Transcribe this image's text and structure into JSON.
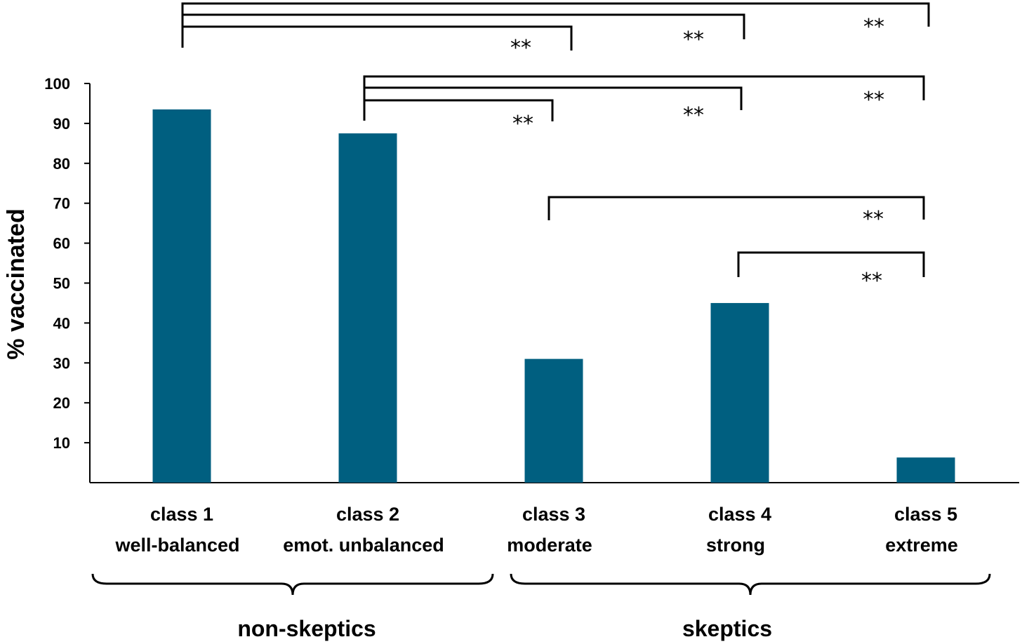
{
  "chart_data": {
    "type": "bar",
    "ylabel": "% vaccinated",
    "xlabel": "",
    "ylim": [
      0,
      100
    ],
    "yticks": [
      10,
      20,
      30,
      40,
      50,
      60,
      70,
      80,
      90,
      100
    ],
    "categories": [
      {
        "name": "class 1",
        "sub": "well-balanced"
      },
      {
        "name": "class 2",
        "sub": "emot. unbalanced"
      },
      {
        "name": "class 3",
        "sub": "moderate"
      },
      {
        "name": "class 4",
        "sub": "strong"
      },
      {
        "name": "class 5",
        "sub": "extreme"
      }
    ],
    "values": [
      93.5,
      87.5,
      31,
      45,
      6.3
    ],
    "bar_color": "#005f80",
    "groups": [
      {
        "label": "non-skeptics",
        "from": 0,
        "to": 1
      },
      {
        "label": "skeptics",
        "from": 2,
        "to": 4
      }
    ],
    "significance": [
      {
        "from": 0,
        "to": 4,
        "label": "**"
      },
      {
        "from": 0,
        "to": 3,
        "label": "**"
      },
      {
        "from": 0,
        "to": 2,
        "label": "**"
      },
      {
        "from": 1,
        "to": 4,
        "label": "**"
      },
      {
        "from": 1,
        "to": 3,
        "label": "**"
      },
      {
        "from": 1,
        "to": 2,
        "label": "**"
      },
      {
        "from": 2,
        "to": 4,
        "label": "**"
      },
      {
        "from": 3,
        "to": 4,
        "label": "**"
      }
    ]
  }
}
